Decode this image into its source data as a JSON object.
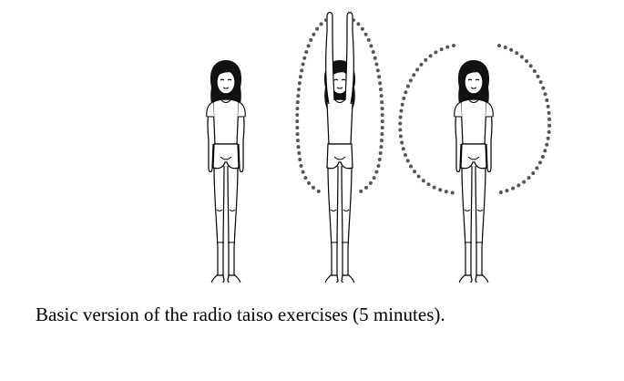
{
  "figure": {
    "illustration": "radio-taiso-figures",
    "poses": [
      "standing-arms-down",
      "arms-raised-overhead",
      "arms-circling"
    ]
  },
  "caption": "Basic version of the radio taiso exercises (5 minutes).",
  "colors": {
    "ink": "#000000",
    "dots": "#555555",
    "background": "#ffffff"
  }
}
